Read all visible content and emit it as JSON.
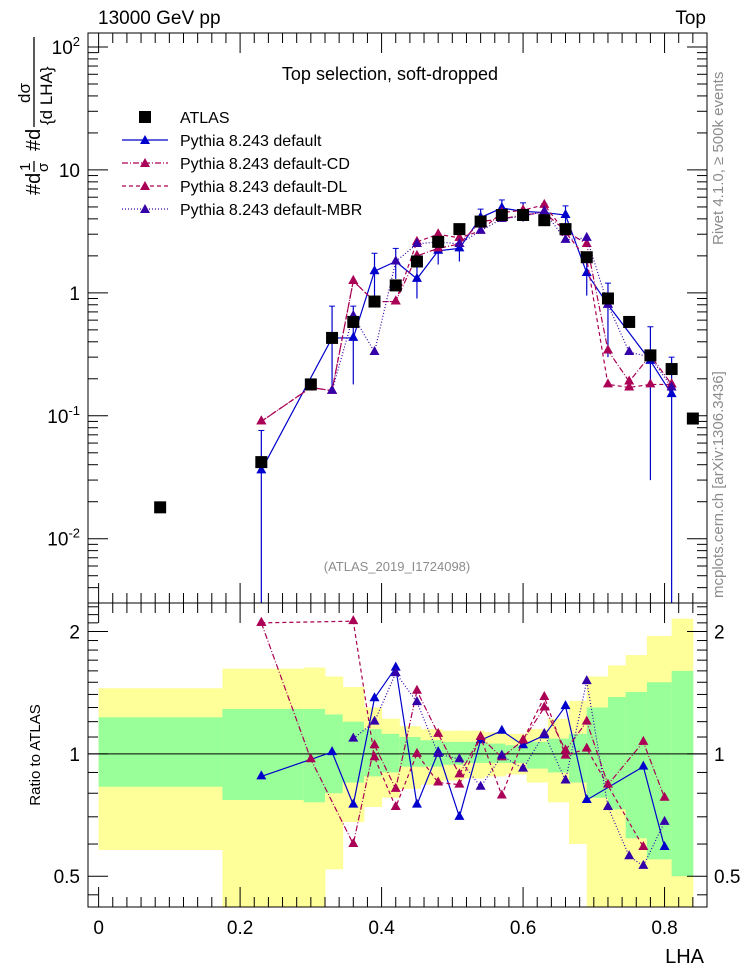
{
  "header": {
    "left": "13000 GeV pp",
    "right": "Top"
  },
  "side_labels": {
    "rivet": "Rivet 4.1.0, ≥ 500k events",
    "mcplots": "mcplots.cern.ch [arXiv:1306.3436]"
  },
  "chart_data": [
    {
      "type": "scatter",
      "title": "Top selection, soft-dropped",
      "watermark": "(ATLAS_2019_I1724098)",
      "ylabel": "#d1/σ #d dσ/{d LHA}",
      "xlabel": "",
      "yscale": "log",
      "ylim": [
        0.003,
        130
      ],
      "xlim": [
        -0.015,
        0.86
      ],
      "y_ticks": [
        {
          "v": 100,
          "label": "10^2"
        },
        {
          "v": 10,
          "label": "10"
        },
        {
          "v": 1,
          "label": "1"
        },
        {
          "v": 0.1,
          "label": "10^-1"
        },
        {
          "v": 0.01,
          "label": "10^-2"
        }
      ],
      "legend_position": "top-left",
      "legend": [
        {
          "name": "ATLAS",
          "color": "#000000",
          "marker": "square",
          "dash": "none"
        },
        {
          "name": "Pythia 8.243 default",
          "color": "#0000cc",
          "marker": "triangle",
          "dash": "solid"
        },
        {
          "name": "Pythia 8.243 default-CD",
          "color": "#aa0055",
          "marker": "triangle",
          "dash": "dashdot"
        },
        {
          "name": "Pythia 8.243 default-DL",
          "color": "#aa0055",
          "marker": "triangle",
          "dash": "dashed"
        },
        {
          "name": "Pythia 8.243 default-MBR",
          "color": "#3300aa",
          "marker": "triangle",
          "dash": "dotted"
        }
      ],
      "x": [
        0.087,
        0.23,
        0.3,
        0.33,
        0.36,
        0.39,
        0.42,
        0.45,
        0.48,
        0.51,
        0.54,
        0.57,
        0.6,
        0.63,
        0.66,
        0.69,
        0.72,
        0.75,
        0.78,
        0.81,
        0.84
      ],
      "series": [
        {
          "name": "ATLAS",
          "values": [
            0.018,
            0.042,
            0.18,
            0.43,
            0.58,
            0.85,
            1.15,
            1.8,
            2.6,
            3.3,
            3.8,
            4.3,
            4.3,
            3.9,
            3.3,
            1.95,
            0.9,
            0.58,
            0.31,
            0.24,
            0.095
          ]
        },
        {
          "name": "Pythia 8.243 default",
          "values": [
            null,
            0.036,
            null,
            0.43,
            0.43,
            1.5,
            1.8,
            1.3,
            2.2,
            2.3,
            4.1,
            4.9,
            4.6,
            4.5,
            4.3,
            1.45,
            0.8,
            null,
            0.28,
            0.15,
            null
          ],
          "err_lo": [
            null,
            0.036,
            null,
            0.27,
            0.25,
            0.6,
            0.5,
            0.4,
            0.5,
            0.5,
            0.7,
            0.8,
            0.8,
            0.8,
            0.8,
            0.5,
            0.5,
            null,
            0.25,
            0.15,
            null
          ],
          "err_hi": [
            null,
            0.04,
            null,
            0.35,
            0.35,
            0.6,
            0.5,
            0.4,
            0.5,
            0.5,
            0.7,
            0.8,
            0.8,
            0.8,
            0.8,
            0.5,
            0.4,
            null,
            0.25,
            0.15,
            null
          ]
        },
        {
          "name": "Pythia 8.243 default-CD",
          "values": [
            null,
            0.09,
            0.17,
            0.16,
            1.25,
            0.85,
            0.85,
            2.0,
            2.3,
            2.5,
            3.8,
            4.0,
            4.3,
            4.5,
            3.2,
            2.5,
            0.34,
            0.19,
            0.31,
            0.18,
            null
          ]
        },
        {
          "name": "Pythia 8.243 default-DL",
          "values": [
            null,
            0.09,
            0.17,
            0.16,
            1.25,
            0.85,
            0.85,
            2.6,
            3.0,
            2.8,
            3.2,
            4.5,
            4.7,
            5.2,
            3.1,
            1.9,
            0.18,
            0.17,
            0.18,
            0.18,
            null
          ]
        },
        {
          "name": "Pythia 8.243 default-MBR",
          "values": [
            null,
            null,
            null,
            0.16,
            0.65,
            0.33,
            1.8,
            2.5,
            2.6,
            2.5,
            3.2,
            4.0,
            4.2,
            4.6,
            2.7,
            2.8,
            0.8,
            0.33,
            0.3,
            0.17,
            null
          ]
        }
      ]
    },
    {
      "type": "scatter",
      "title": "",
      "xlabel": "LHA",
      "ylabel": "Ratio to ATLAS",
      "yscale": "log",
      "ylim": [
        0.42,
        2.35
      ],
      "xlim": [
        -0.015,
        0.86
      ],
      "x_ticks": [
        0,
        0.2,
        0.4,
        0.6,
        0.8
      ],
      "y_ticks": [
        {
          "v": 0.5,
          "label": "0.5"
        },
        {
          "v": 1,
          "label": "1"
        },
        {
          "v": 2,
          "label": "2"
        }
      ],
      "band_edges": [
        0,
        0.175,
        0.29,
        0.32,
        0.345,
        0.375,
        0.4,
        0.425,
        0.455,
        0.485,
        0.515,
        0.545,
        0.575,
        0.605,
        0.635,
        0.665,
        0.69,
        0.72,
        0.745,
        0.775,
        0.81,
        0.84
      ],
      "band_1sigma": {
        "lo": [
          0.83,
          0.77,
          0.76,
          0.8,
          0.85,
          0.88,
          0.9,
          0.93,
          0.93,
          0.94,
          0.95,
          0.95,
          0.95,
          0.92,
          0.9,
          0.85,
          0.78,
          0.73,
          0.62,
          0.55,
          0.5
        ],
        "hi": [
          1.23,
          1.29,
          1.29,
          1.25,
          1.2,
          1.15,
          1.12,
          1.1,
          1.08,
          1.07,
          1.07,
          1.06,
          1.05,
          1.07,
          1.09,
          1.12,
          1.3,
          1.38,
          1.42,
          1.5,
          1.6
        ]
      },
      "band_2sigma": {
        "lo": [
          0.58,
          0.42,
          0.42,
          0.52,
          0.68,
          0.74,
          0.78,
          0.82,
          0.84,
          0.86,
          0.87,
          0.88,
          0.89,
          0.85,
          0.76,
          0.6,
          0.42,
          0.42,
          0.42,
          0.42,
          0.42
        ],
        "hi": [
          1.45,
          1.62,
          1.63,
          1.55,
          1.46,
          1.3,
          1.22,
          1.17,
          1.15,
          1.14,
          1.14,
          1.13,
          1.12,
          1.15,
          1.22,
          1.35,
          1.55,
          1.65,
          1.75,
          1.95,
          2.15
        ]
      },
      "reference_line": 1.0,
      "series": [
        {
          "name": "Pythia 8.243 default",
          "x": [
            0.23,
            0.33,
            0.36,
            0.39,
            0.42,
            0.45,
            0.48,
            0.51,
            0.54,
            0.57,
            0.6,
            0.63,
            0.66,
            0.69,
            0.77,
            0.8
          ],
          "values": [
            0.88,
            1.01,
            0.75,
            1.37,
            1.63,
            0.75,
            1.01,
            0.7,
            1.08,
            1.14,
            1.05,
            1.11,
            1.31,
            0.77,
            0.93,
            0.59
          ]
        },
        {
          "name": "Pythia 8.243 default-CD",
          "x": [
            0.23,
            0.3,
            0.36,
            0.39,
            0.42,
            0.45,
            0.48,
            0.51,
            0.54,
            0.57,
            0.6,
            0.63,
            0.66,
            0.69,
            0.72,
            0.77,
            0.8
          ],
          "values": [
            2.1,
            0.97,
            0.6,
            1.05,
            0.82,
            1.43,
            1.12,
            0.89,
            1.1,
            0.98,
            1.08,
            1.3,
            1.02,
            1.2,
            0.84,
            1.07,
            0.78
          ]
        },
        {
          "name": "Pythia 8.243 default-DL",
          "x": [
            0.23,
            0.36,
            0.39,
            0.42,
            0.45,
            0.48,
            0.51,
            0.54,
            0.57,
            0.6,
            0.63,
            0.66,
            0.69,
            0.77
          ],
          "values": [
            2.1,
            2.12,
            0.98,
            0.74,
            1.0,
            0.85,
            0.84,
            1.1,
            0.79,
            1.08,
            1.38,
            0.99,
            1.03,
            0.59
          ]
        },
        {
          "name": "Pythia 8.243 default-MBR",
          "x": [
            0.36,
            0.39,
            0.42,
            0.45,
            0.48,
            0.51,
            0.54,
            0.57,
            0.6,
            0.63,
            0.66,
            0.69,
            0.72,
            0.75,
            0.77,
            0.8
          ],
          "values": [
            1.09,
            1.2,
            1.58,
            1.34,
            1.0,
            0.97,
            0.83,
            0.99,
            0.92,
            1.12,
            0.86,
            1.51,
            0.74,
            0.56,
            0.53,
            0.68
          ]
        }
      ]
    }
  ]
}
